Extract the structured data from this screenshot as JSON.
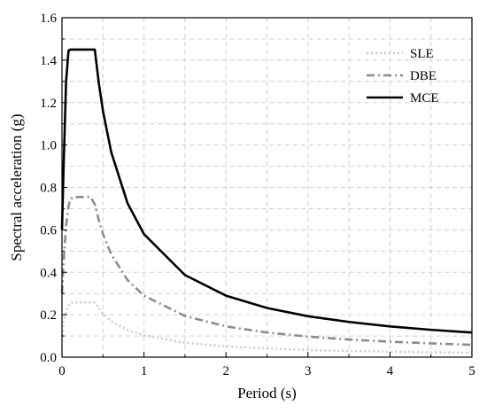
{
  "chart_data": {
    "type": "line",
    "xlabel": "Period (s)",
    "ylabel": "Spectral acceleration (g)",
    "xlim": [
      0,
      5
    ],
    "ylim": [
      0,
      1.6
    ],
    "x_ticks": [
      "0",
      "1",
      "2",
      "3",
      "4",
      "5"
    ],
    "y_ticks": [
      "0.0",
      "0.2",
      "0.4",
      "0.6",
      "0.8",
      "1.0",
      "1.2",
      "1.4",
      "1.6"
    ],
    "grid": true,
    "legend_position": "top-right",
    "series": [
      {
        "name": "SLE",
        "color": "#c8c8c8",
        "style": "dotted",
        "x": [
          0,
          0.02,
          0.05,
          0.08,
          0.1,
          0.15,
          0.2,
          0.3,
          0.4,
          0.45,
          0.5,
          0.6,
          0.8,
          1.0,
          1.5,
          2.0,
          2.5,
          3.0,
          3.5,
          4.0,
          4.5,
          5.0
        ],
        "y": [
          0.1,
          0.16,
          0.22,
          0.245,
          0.255,
          0.258,
          0.258,
          0.258,
          0.258,
          0.23,
          0.205,
          0.17,
          0.128,
          0.103,
          0.068,
          0.051,
          0.041,
          0.034,
          0.029,
          0.026,
          0.023,
          0.021
        ]
      },
      {
        "name": "DBE",
        "color": "#8c8c8c",
        "style": "dashdot",
        "x": [
          0,
          0.02,
          0.05,
          0.08,
          0.1,
          0.15,
          0.2,
          0.3,
          0.35,
          0.4,
          0.45,
          0.5,
          0.6,
          0.8,
          1.0,
          1.5,
          2.0,
          2.5,
          3.0,
          3.5,
          4.0,
          4.5,
          5.0
        ],
        "y": [
          0.3,
          0.45,
          0.62,
          0.71,
          0.745,
          0.755,
          0.755,
          0.755,
          0.755,
          0.72,
          0.645,
          0.58,
          0.485,
          0.363,
          0.29,
          0.194,
          0.145,
          0.116,
          0.097,
          0.083,
          0.073,
          0.065,
          0.058
        ]
      },
      {
        "name": "MCE",
        "color": "#000000",
        "style": "solid",
        "x": [
          0,
          0.02,
          0.05,
          0.08,
          0.1,
          0.15,
          0.2,
          0.3,
          0.4,
          0.45,
          0.5,
          0.6,
          0.8,
          1.0,
          1.5,
          2.0,
          2.5,
          3.0,
          3.5,
          4.0,
          4.5,
          5.0
        ],
        "y": [
          0.6,
          0.9,
          1.3,
          1.445,
          1.45,
          1.45,
          1.45,
          1.45,
          1.45,
          1.29,
          1.16,
          0.967,
          0.725,
          0.58,
          0.387,
          0.29,
          0.232,
          0.193,
          0.166,
          0.145,
          0.129,
          0.116
        ]
      }
    ]
  }
}
